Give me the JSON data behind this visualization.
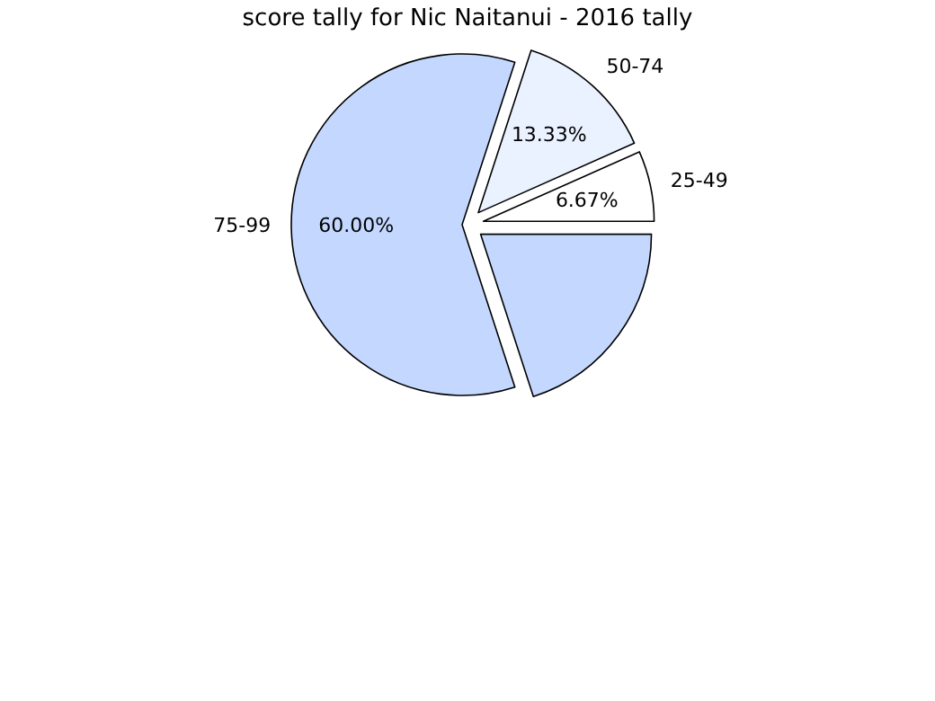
{
  "chart_data": {
    "type": "pie",
    "title": "score tally for Nic Naitanui - 2016 tally",
    "categories": [
      "25-49",
      "50-74",
      "75-99",
      null
    ],
    "values": [
      6.67,
      13.33,
      60,
      20
    ],
    "colors": [
      "#ffffff",
      "#eaf1ff",
      "#c4d8ff",
      "#c4d8ff"
    ],
    "value_labels": [
      "6.67%",
      "13.33%",
      "60.00%",
      null
    ]
  }
}
